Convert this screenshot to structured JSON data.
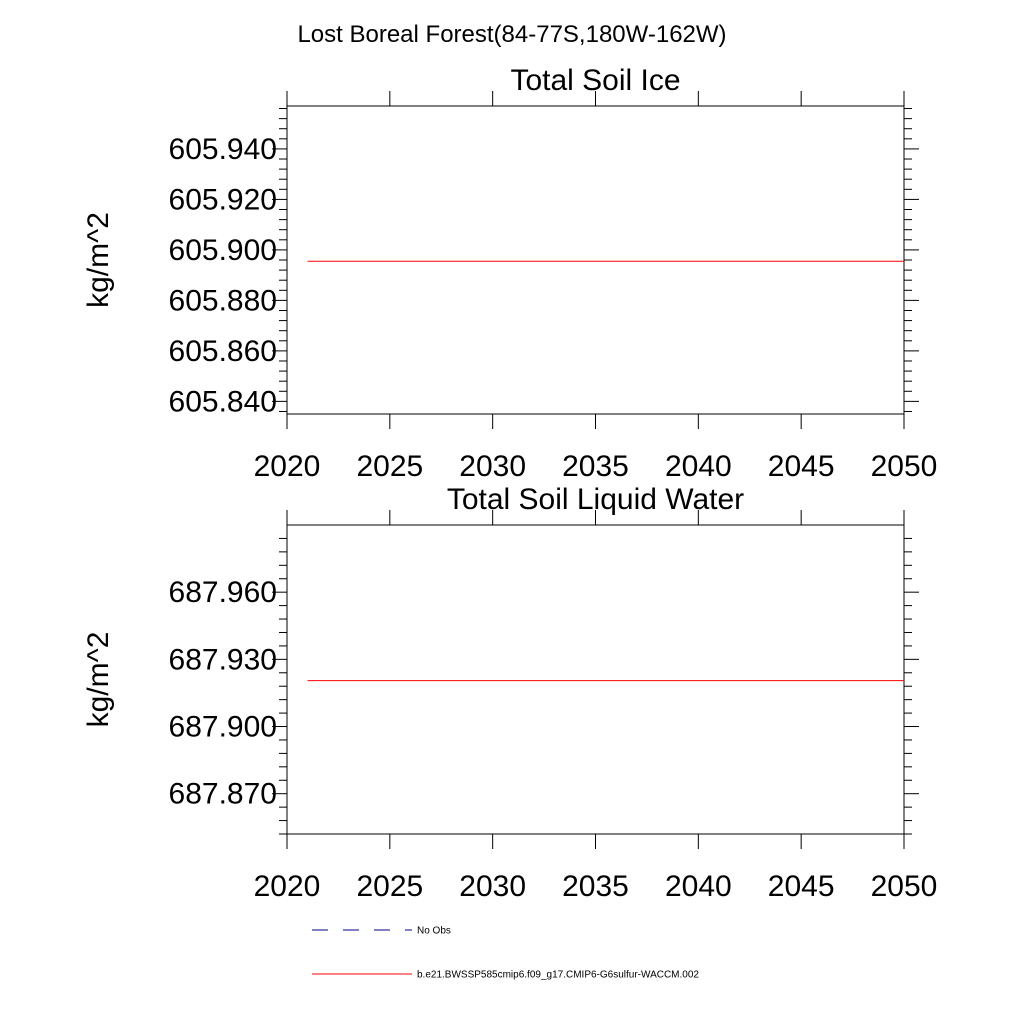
{
  "figure": {
    "title": "Lost Boreal Forest(84-77S,180W-162W)"
  },
  "colors": {
    "model_line": "#ff0000",
    "obs_line": "#000080",
    "axis": "#000000"
  },
  "chart_data": [
    {
      "type": "line",
      "title": "Total Soil Ice",
      "xlabel": "",
      "ylabel": "kg/m^2",
      "xlim": [
        2020,
        2050
      ],
      "ylim": [
        605.835,
        605.957
      ],
      "xticks": [
        "2020",
        "2025",
        "2030",
        "2035",
        "2040",
        "2045",
        "2050"
      ],
      "yticks": [
        "605.840",
        "605.860",
        "605.880",
        "605.900",
        "605.920",
        "605.940"
      ],
      "grid": false,
      "series": [
        {
          "name": "b.e21.BWSSP585cmip6.f09_g17.CMIP6-G6sulfur-WACCM.002",
          "color": "#ff0000",
          "x": [
            2021,
            2050
          ],
          "y": [
            605.8955,
            605.8955
          ]
        }
      ]
    },
    {
      "type": "line",
      "title": "Total Soil Liquid Water",
      "xlabel": "",
      "ylabel": "kg/m^2",
      "xlim": [
        2020,
        2050
      ],
      "ylim": [
        687.852,
        687.99
      ],
      "xticks": [
        "2020",
        "2025",
        "2030",
        "2035",
        "2040",
        "2045",
        "2050"
      ],
      "yticks": [
        "687.870",
        "687.900",
        "687.930",
        "687.960"
      ],
      "grid": false,
      "series": [
        {
          "name": "b.e21.BWSSP585cmip6.f09_g17.CMIP6-G6sulfur-WACCM.002",
          "color": "#ff0000",
          "x": [
            2021,
            2050
          ],
          "y": [
            687.9205,
            687.9205
          ]
        }
      ]
    }
  ],
  "legend": {
    "placement": "bottom",
    "items": [
      {
        "label": "No Obs",
        "style": "dashed",
        "color": "#000080"
      },
      {
        "label": "b.e21.BWSSP585cmip6.f09_g17.CMIP6-G6sulfur-WACCM.002",
        "style": "solid",
        "color": "#ff0000"
      }
    ]
  }
}
